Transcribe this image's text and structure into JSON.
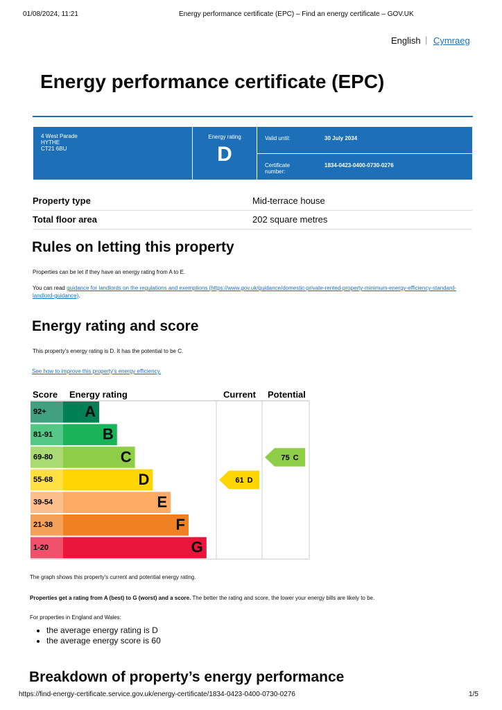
{
  "header": {
    "date": "01/08/2024, 11:21",
    "title": "Energy performance certificate (EPC) – Find an energy certificate – GOV.UK"
  },
  "language": {
    "english": "English",
    "welsh": "Cymraeg"
  },
  "title": "Energy performance certificate (EPC)",
  "summary": {
    "address": [
      "4 West Parade",
      "HYTHE",
      "CT21 6BU"
    ],
    "rating_label": "Energy rating",
    "rating": "D",
    "valid_label": "Valid until:",
    "valid_until": "30 July 2034",
    "certificate_label": "Certificate number:",
    "certificate_number": "1834-0423-0400-0730-0276"
  },
  "property": {
    "rows": [
      [
        "Property type",
        "Mid-terrace house"
      ],
      [
        "Total floor area",
        "202 square metres"
      ]
    ]
  },
  "rules": {
    "heading": "Rules on letting this property",
    "paragraph": "Properties can be let if they have an energy rating from A to E.",
    "guidance_prefix": "You can read ",
    "guidance_link": "guidance for landlords on the regulations and exemptions (https://www.gov.uk/guidance/domestic-private-rented-property-minimum-energy-efficiency-standard-landlord-guidance)",
    "guidance_suffix": "."
  },
  "energy": {
    "heading": "Energy rating and score",
    "paragraph": "This property's energy rating is D. It has the potential to be C.",
    "link": "See how to improve this property's energy efficiency."
  },
  "graph": {
    "headers": [
      "Score",
      "Energy rating",
      "Current",
      "Potential"
    ],
    "bands": [
      {
        "score": "92+",
        "letter": "A",
        "color": "#008054"
      },
      {
        "score": "81-91",
        "letter": "B",
        "color": "#19b459"
      },
      {
        "score": "69-80",
        "letter": "C",
        "color": "#8dce46"
      },
      {
        "score": "55-68",
        "letter": "D",
        "color": "#ffd500"
      },
      {
        "score": "39-54",
        "letter": "E",
        "color": "#fcaa65"
      },
      {
        "score": "21-38",
        "letter": "F",
        "color": "#ef8023"
      },
      {
        "score": "1-20",
        "letter": "G",
        "color": "#e9153b"
      }
    ],
    "current": {
      "score": "61",
      "letter": "D"
    },
    "potential": {
      "score": "75",
      "letter": "C"
    }
  },
  "after_graph": {
    "caption": "The graph shows this property's current and potential energy rating.",
    "bold": "Properties get a rating from A (best) to G (worst) and a score.",
    "rest": " The better the rating and score, the lower your energy bills are likely to be.",
    "intro": "For properties in England and Wales:",
    "list": [
      "the average energy rating is D",
      "the average energy score is 60"
    ],
    "heading": "Breakdown of property’s energy performance"
  },
  "footer": {
    "url": "https://find-energy-certificate.service.gov.uk/energy-certificate/1834-0423-0400-0730-0276",
    "page": "1/5"
  }
}
